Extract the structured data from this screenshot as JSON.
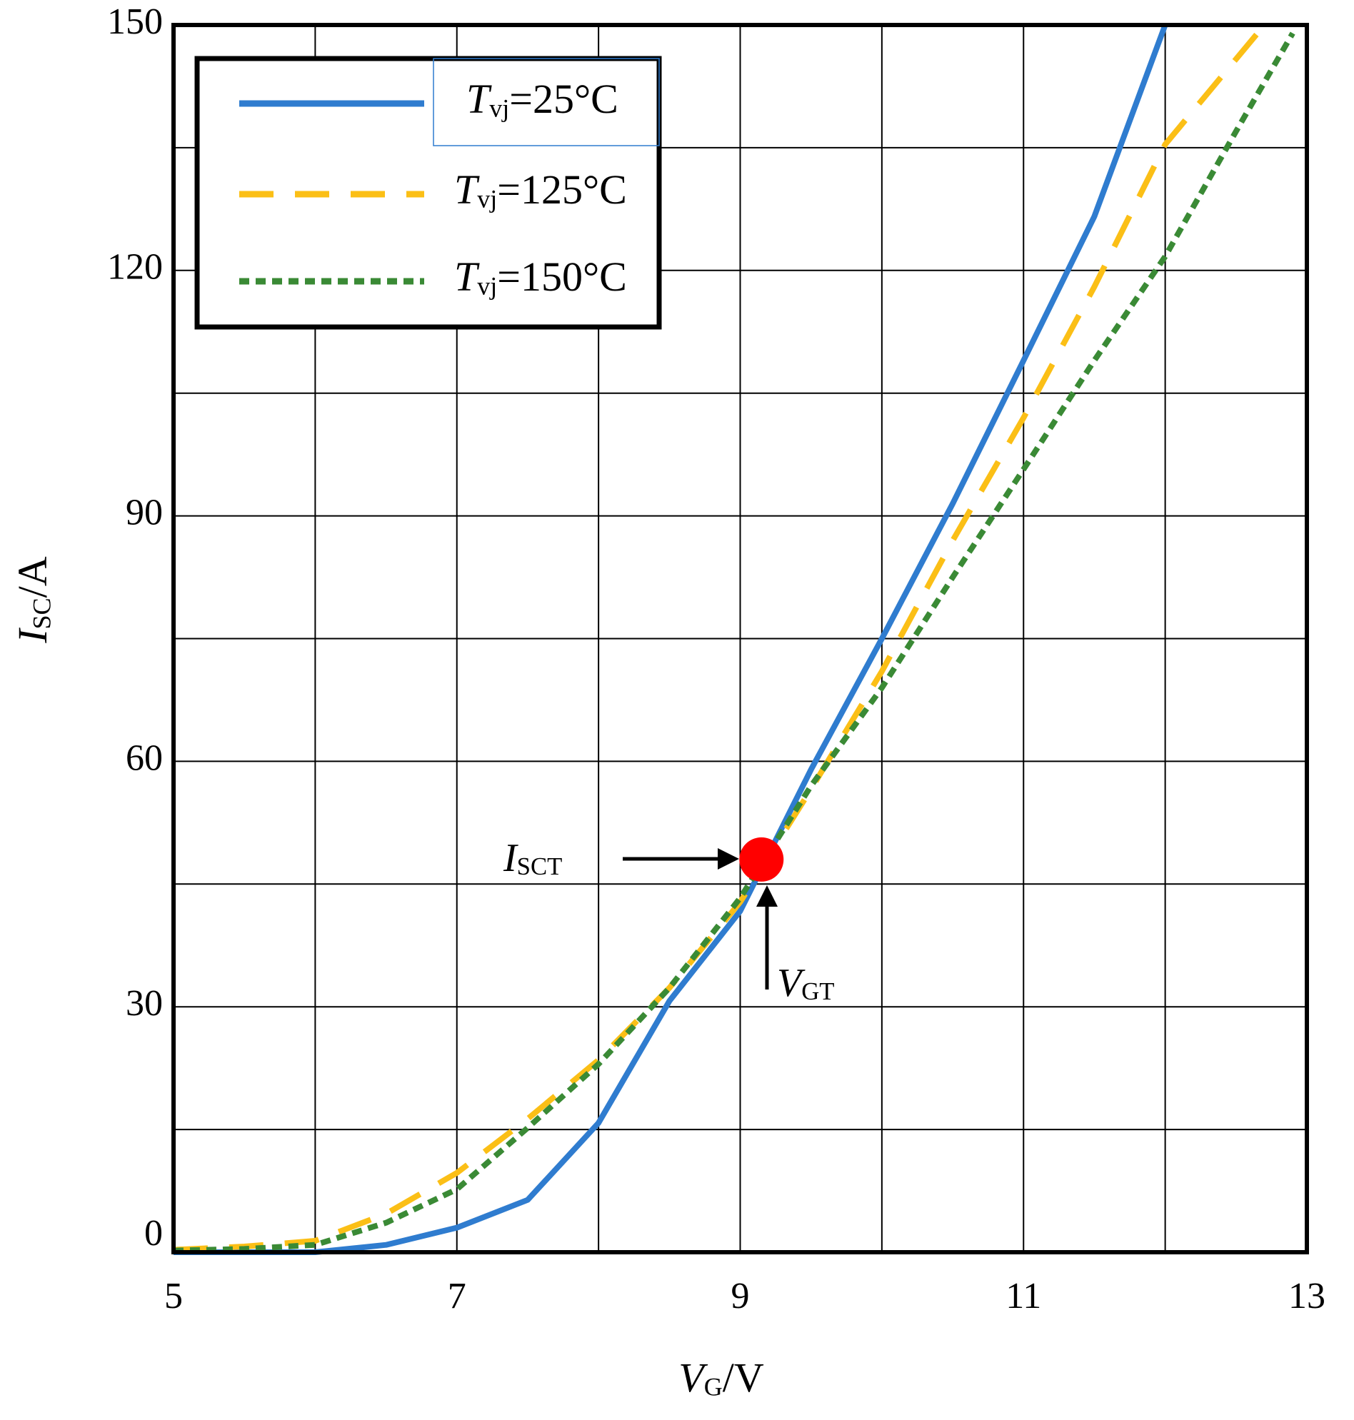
{
  "chart_data": {
    "type": "line",
    "x_label": "VG/V",
    "y_label": "ISC/A",
    "xlim": [
      5,
      13
    ],
    "xticks": [
      5,
      7,
      9,
      11,
      13
    ],
    "xminor": [
      6,
      8,
      10,
      12
    ],
    "ylim": [
      0,
      150
    ],
    "yticks": [
      0,
      30,
      60,
      90,
      120,
      150
    ],
    "yminor": [
      15,
      45,
      75,
      105,
      135
    ],
    "grid": true,
    "legend": "upper left",
    "series": [
      {
        "name": "Tvj=25°C",
        "color": "#2f7ccf",
        "dash": "solid",
        "x": [
          5,
          5.5,
          6,
          6.5,
          7,
          7.5,
          8,
          8.5,
          9,
          9.5,
          10,
          10.5,
          11,
          11.5,
          12
        ],
        "values": [
          0,
          0,
          0,
          0.9,
          3,
          6.4,
          15.8,
          30.7,
          41.7,
          59,
          75,
          91.5,
          109,
          126.6,
          150
        ]
      },
      {
        "name": "Tvj=125°C",
        "color": "#fbbf16",
        "dash": "dashed",
        "x": [
          5,
          5.5,
          6,
          6.5,
          7,
          7.5,
          8,
          8.5,
          9,
          9.5,
          10,
          10.5,
          11,
          11.5,
          12,
          12.7
        ],
        "values": [
          0.3,
          0.7,
          1.4,
          4.7,
          9.7,
          16.3,
          23.5,
          32.3,
          42.8,
          56.6,
          71,
          87,
          102,
          118,
          135.4,
          150
        ]
      },
      {
        "name": "Tvj=150°C",
        "color": "#3a8a35",
        "dash": "dotted",
        "x": [
          5,
          5.5,
          6,
          6.5,
          7,
          7.5,
          8,
          8.5,
          9,
          9.5,
          10,
          10.5,
          11,
          11.5,
          12,
          12.5,
          12.9
        ],
        "values": [
          0.2,
          0.4,
          0.9,
          3.6,
          7.7,
          15.2,
          23,
          32.3,
          43.3,
          57,
          69,
          82.5,
          95.7,
          109,
          121.7,
          137,
          149
        ]
      }
    ],
    "marker": {
      "x": 9.15,
      "y": 48,
      "color": "#ff0000"
    },
    "annotations": [
      {
        "text": "ISCT"
      },
      {
        "text": "VGT"
      }
    ]
  }
}
